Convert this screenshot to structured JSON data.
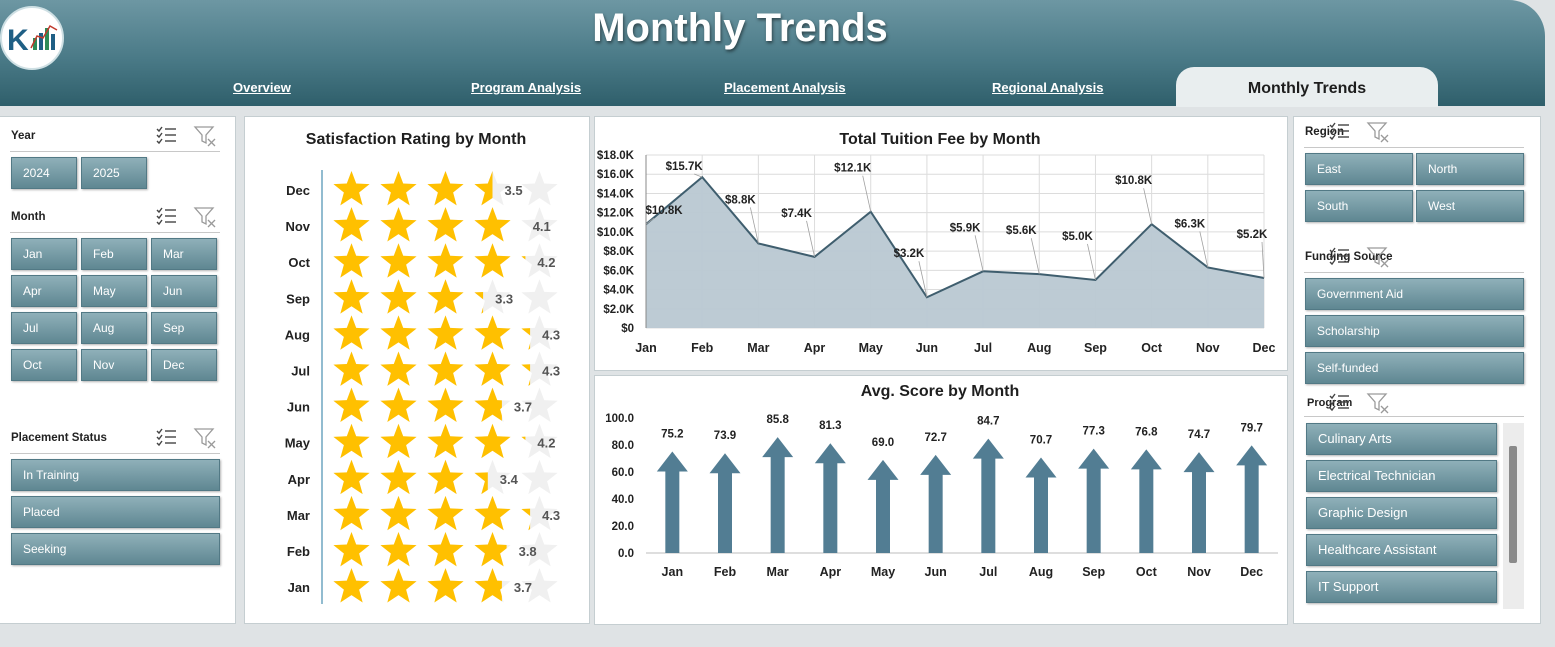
{
  "header": {
    "title": "Monthly Trends",
    "tabs": [
      "Overview",
      "Program Analysis",
      "Placement Analysis",
      "Regional Analysis"
    ],
    "active_tab": "Monthly Trends"
  },
  "slicers": {
    "year": {
      "title": "Year",
      "items": [
        "2024",
        "2025"
      ]
    },
    "month": {
      "title": "Month",
      "items": [
        "Jan",
        "Feb",
        "Mar",
        "Apr",
        "May",
        "Jun",
        "Jul",
        "Aug",
        "Sep",
        "Oct",
        "Nov",
        "Dec"
      ]
    },
    "placement": {
      "title": "Placement Status",
      "items": [
        "In Training",
        "Placed",
        "Seeking"
      ]
    },
    "region": {
      "title": "Region",
      "items": [
        "East",
        "North",
        "South",
        "West"
      ]
    },
    "funding": {
      "title": "Funding Source",
      "items": [
        "Government Aid",
        "Scholarship",
        "Self-funded"
      ]
    },
    "program": {
      "title": "Program",
      "items": [
        "Culinary Arts",
        "Electrical Technician",
        "Graphic Design",
        "Healthcare Assistant",
        "IT Support"
      ]
    }
  },
  "colors": {
    "accent": "#4a7a87",
    "star": "#ffc000",
    "area": "#b9c8d2",
    "arrow": "#527d93"
  },
  "icons": {
    "multi_select": "multi-select-icon",
    "clear_filter": "clear-filter-icon"
  },
  "chart_data": [
    {
      "type": "bar",
      "title": "Satisfaction Rating by Month",
      "categories": [
        "Dec",
        "Nov",
        "Oct",
        "Sep",
        "Aug",
        "Jul",
        "Jun",
        "May",
        "Apr",
        "Mar",
        "Feb",
        "Jan"
      ],
      "values": [
        3.5,
        4.1,
        4.2,
        3.3,
        4.3,
        4.3,
        3.7,
        4.2,
        3.4,
        4.3,
        3.8,
        3.7
      ],
      "value_labels": [
        "3.5",
        "4.1",
        "4.2",
        "3.3",
        "4.3",
        "4.3",
        "3.7",
        "4.2",
        "3.4",
        "4.3",
        "3.8",
        "3.7"
      ],
      "max": 5
    },
    {
      "type": "area",
      "title": "Total Tuition Fee by Month",
      "categories": [
        "Jan",
        "Feb",
        "Mar",
        "Apr",
        "May",
        "Jun",
        "Jul",
        "Aug",
        "Sep",
        "Oct",
        "Nov",
        "Dec"
      ],
      "values": [
        10800,
        15700,
        8800,
        7400,
        12100,
        3200,
        5900,
        5600,
        5000,
        10800,
        6300,
        5200
      ],
      "value_labels": [
        "$10.8K",
        "$15.7K",
        "$8.8K",
        "$7.4K",
        "$12.1K",
        "$3.2K",
        "$5.9K",
        "$5.6K",
        "$5.0K",
        "$10.8K",
        "$6.3K",
        "$5.2K"
      ],
      "yticks": [
        "$0",
        "$2.0K",
        "$4.0K",
        "$6.0K",
        "$8.0K",
        "$10.0K",
        "$12.0K",
        "$14.0K",
        "$16.0K",
        "$18.0K"
      ],
      "ylim": [
        0,
        18000
      ]
    },
    {
      "type": "bar",
      "title": "Avg. Score by Month",
      "categories": [
        "Jan",
        "Feb",
        "Mar",
        "Apr",
        "May",
        "Jun",
        "Jul",
        "Aug",
        "Sep",
        "Oct",
        "Nov",
        "Dec"
      ],
      "values": [
        75.2,
        73.9,
        85.8,
        81.3,
        69.0,
        72.7,
        84.7,
        70.7,
        77.3,
        76.8,
        74.7,
        79.7
      ],
      "value_labels": [
        "75.2",
        "73.9",
        "85.8",
        "81.3",
        "69.0",
        "72.7",
        "84.7",
        "70.7",
        "77.3",
        "76.8",
        "74.7",
        "79.7"
      ],
      "yticks": [
        "0.0",
        "20.0",
        "40.0",
        "60.0",
        "80.0",
        "100.0"
      ],
      "ylim": [
        0,
        100
      ]
    }
  ]
}
